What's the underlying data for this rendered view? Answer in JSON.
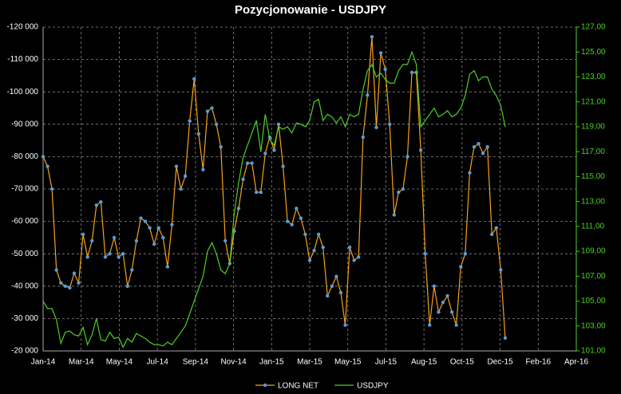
{
  "chart_data": {
    "type": "line",
    "title": "Pozycjonowanie - USDJPY",
    "x": [
      0,
      7,
      14,
      21,
      28,
      35,
      42,
      49,
      56,
      63,
      70,
      77,
      84,
      91,
      98,
      105,
      112,
      119,
      126,
      133,
      140,
      147,
      154,
      161,
      168,
      175,
      182,
      189,
      196,
      203,
      210,
      217,
      224,
      231,
      238,
      245,
      252,
      259,
      266,
      273,
      280,
      287,
      294,
      301,
      308,
      315,
      322,
      329,
      336,
      343,
      350,
      357,
      364,
      371,
      378,
      385,
      392,
      399,
      406,
      413,
      420,
      427,
      434,
      441,
      448,
      455,
      462,
      469,
      476,
      483,
      490,
      497,
      504,
      511,
      518,
      525,
      532,
      539,
      546,
      553,
      560,
      567,
      574,
      581,
      588,
      595,
      602,
      609,
      616,
      623,
      630,
      637,
      644,
      651,
      658,
      665,
      672,
      679,
      686,
      693,
      700,
      707,
      714,
      721,
      728
    ],
    "xlim": [
      0,
      840
    ],
    "xticks": [
      {
        "value": 0,
        "label": "Jan-14"
      },
      {
        "value": 60,
        "label": "Mar-14"
      },
      {
        "value": 120,
        "label": "May-14"
      },
      {
        "value": 180,
        "label": "Jul-14"
      },
      {
        "value": 240,
        "label": "Sep-14"
      },
      {
        "value": 300,
        "label": "Nov-14"
      },
      {
        "value": 360,
        "label": "Jan-15"
      },
      {
        "value": 420,
        "label": "Mar-15"
      },
      {
        "value": 480,
        "label": "May-15"
      },
      {
        "value": 540,
        "label": "Jul-15"
      },
      {
        "value": 600,
        "label": "Aug-15"
      },
      {
        "value": 660,
        "label": "Oct-15"
      },
      {
        "value": 720,
        "label": "Dec-15"
      },
      {
        "value": 780,
        "label": "Feb-16"
      },
      {
        "value": 840,
        "label": "Apr-16"
      }
    ],
    "ylim": [
      -20000,
      -120000
    ],
    "yticks": [
      {
        "value": -120000,
        "label": "-120 000"
      },
      {
        "value": -110000,
        "label": "-110 000"
      },
      {
        "value": -100000,
        "label": "-100 000"
      },
      {
        "value": -90000,
        "label": "-90 000"
      },
      {
        "value": -80000,
        "label": "-80 000"
      },
      {
        "value": -70000,
        "label": "-70 000"
      },
      {
        "value": -60000,
        "label": "-60 000"
      },
      {
        "value": -50000,
        "label": "-50 000"
      },
      {
        "value": -40000,
        "label": "-40 000"
      },
      {
        "value": -30000,
        "label": "-30 000"
      },
      {
        "value": -20000,
        "label": "-20 000"
      }
    ],
    "y2lim": [
      101,
      127
    ],
    "y2ticks": [
      {
        "value": 127,
        "label": "127,00"
      },
      {
        "value": 125,
        "label": "125,00"
      },
      {
        "value": 123,
        "label": "123,00"
      },
      {
        "value": 121,
        "label": "121,00"
      },
      {
        "value": 119,
        "label": "119,00"
      },
      {
        "value": 117,
        "label": "117,00"
      },
      {
        "value": 115,
        "label": "115,00"
      },
      {
        "value": 113,
        "label": "113,00"
      },
      {
        "value": 111,
        "label": "111,00"
      },
      {
        "value": 109,
        "label": "109,00"
      },
      {
        "value": 107,
        "label": "107,00"
      },
      {
        "value": 105,
        "label": "105,00"
      },
      {
        "value": 103,
        "label": "103,00"
      },
      {
        "value": 101,
        "label": "101,00"
      }
    ],
    "grid": true,
    "series": [
      {
        "name": "LONG NET",
        "color": "#f5a21a",
        "marker_color": "#5b9bd5",
        "values": [
          -80000,
          -77000,
          -70000,
          -45000,
          -41000,
          -40000,
          -39500,
          -44000,
          -41000,
          -56000,
          -49000,
          -54000,
          -65000,
          -66000,
          -49000,
          -50000,
          -55000,
          -49000,
          -50000,
          -40000,
          -45000,
          -54000,
          -61000,
          -60000,
          -58000,
          -53000,
          -58000,
          -55000,
          -46000,
          -59000,
          -77000,
          -70000,
          -74000,
          -91000,
          -104000,
          -87000,
          -76000,
          -94000,
          -95000,
          -90000,
          -83000,
          -54000,
          -47000,
          -57000,
          -64000,
          -73000,
          -78000,
          -78000,
          -69000,
          -69000,
          -81000,
          -86000,
          -82000,
          -90000,
          -77000,
          -60000,
          -59000,
          -64000,
          -61000,
          -56000,
          -48000,
          -51000,
          -56000,
          -52000,
          -37000,
          -40000,
          -43000,
          -38000,
          -28000,
          -52000,
          -48000,
          -49000,
          -86000,
          -99000,
          -117000,
          -89000,
          -112000,
          -107000,
          -90000,
          -62000,
          -69000,
          -70000,
          -80000,
          -106000,
          -106000,
          -82000,
          -50000,
          -28000,
          -40000,
          -32000,
          -35000,
          -37000,
          -32000,
          -28000,
          -46000,
          -50000,
          -75000,
          -83000,
          -84000,
          -81000,
          -83000,
          -56000,
          -58000,
          -45000,
          -24000
        ]
      },
      {
        "name": "USDJPY",
        "color": "#4cd024",
        "axis": "y2",
        "values": [
          105.0,
          104.4,
          104.4,
          103.5,
          101.6,
          102.5,
          102.6,
          102.3,
          102.2,
          102.9,
          101.5,
          102.3,
          103.6,
          101.9,
          101.8,
          102.5,
          102.0,
          102.1,
          101.3,
          102.0,
          101.7,
          102.4,
          102.2,
          102.0,
          101.7,
          101.5,
          101.5,
          101.4,
          101.7,
          101.5,
          102.0,
          102.5,
          103.0,
          104.0,
          105.0,
          106.0,
          107.0,
          109.0,
          109.7,
          108.8,
          107.5,
          107.2,
          108.0,
          112.0,
          114.5,
          116.5,
          117.5,
          118.5,
          119.5,
          117.0,
          120.0,
          118.0,
          117.5,
          119.0,
          118.8,
          119.0,
          118.5,
          119.3,
          119.2,
          119.0,
          119.5,
          121.0,
          121.2,
          119.5,
          120.0,
          119.8,
          119.3,
          119.8,
          119.0,
          120.0,
          119.8,
          120.0,
          122.0,
          123.5,
          124.0,
          123.0,
          123.3,
          122.8,
          122.5,
          122.5,
          123.5,
          124.0,
          124.0,
          125.0,
          124.0,
          119.0,
          119.5,
          120.0,
          120.5,
          119.8,
          120.0,
          120.3,
          119.8,
          120.0,
          120.5,
          121.5,
          123.2,
          123.5,
          122.7,
          123.0,
          123.0,
          122.0,
          121.5,
          120.7,
          119.0
        ]
      }
    ]
  }
}
